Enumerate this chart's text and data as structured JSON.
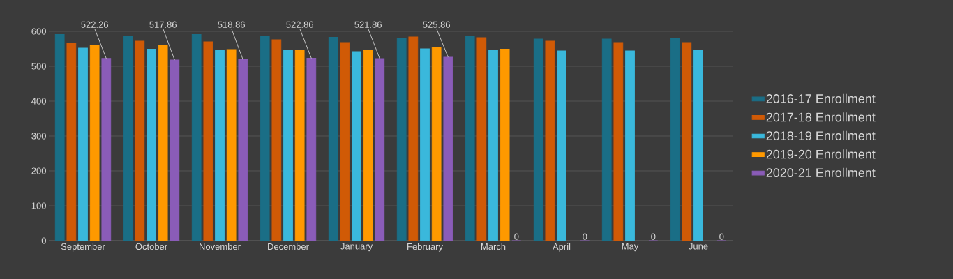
{
  "chart_data": {
    "type": "bar",
    "categories": [
      "September",
      "October",
      "November",
      "December",
      "January",
      "February",
      "March",
      "April",
      "May",
      "June"
    ],
    "series": [
      {
        "name": "2016-17 Enrollment",
        "color": "#1a6e86",
        "values": [
          591,
          587,
          591,
          587,
          583,
          581,
          586,
          578,
          578,
          580
        ]
      },
      {
        "name": "2017-18 Enrollment",
        "color": "#d05a06",
        "values": [
          567,
          572,
          570,
          576,
          568,
          584,
          582,
          572,
          568,
          568
        ]
      },
      {
        "name": "2018-19 Enrollment",
        "color": "#3ab8dc",
        "values": [
          552,
          549,
          545,
          547,
          542,
          550,
          546,
          544,
          544,
          546
        ]
      },
      {
        "name": "2019-20 Enrollment",
        "color": "#ff9900",
        "values": [
          559,
          560,
          548,
          545,
          545,
          555,
          549,
          null,
          null,
          null
        ]
      },
      {
        "name": "2020-21 Enrollment",
        "color": "#8a5cb8",
        "values": [
          522.26,
          517.86,
          518.86,
          522.86,
          521.86,
          525.86,
          0,
          0,
          0,
          0
        ],
        "value_labels": [
          "522.26",
          "517.86",
          "518.86",
          "522.86",
          "521.86",
          "525.86",
          "0",
          "0",
          "0",
          "0"
        ]
      }
    ],
    "ylim": [
      0,
      600
    ],
    "yticks": [
      0,
      100,
      200,
      300,
      400,
      500,
      600
    ],
    "grid": "y",
    "legend": "right"
  }
}
